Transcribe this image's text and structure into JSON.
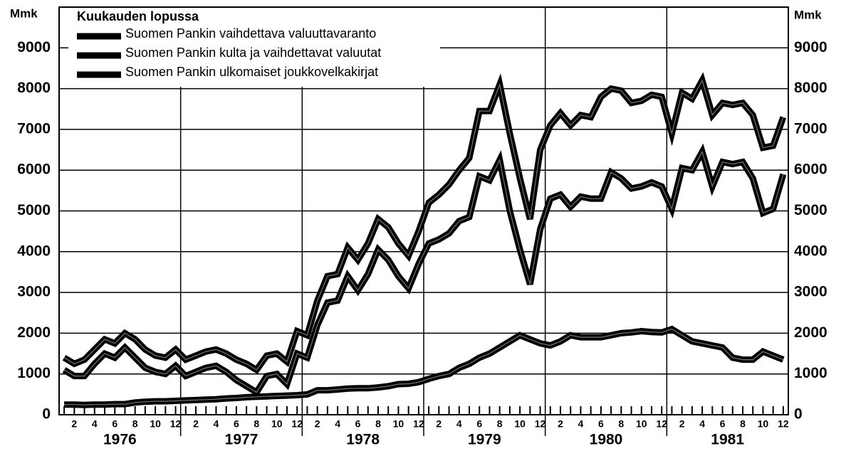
{
  "chart_data": {
    "type": "line",
    "y_unit": "Mmk",
    "legend_title": "Kuukauden lopussa",
    "categories": [
      null,
      "2",
      null,
      "4",
      null,
      "6",
      null,
      "8",
      null,
      "10",
      null,
      "12",
      null,
      "2",
      null,
      "4",
      null,
      "6",
      null,
      "8",
      null,
      "10",
      null,
      "12",
      null,
      "2",
      null,
      "4",
      null,
      "6",
      null,
      "8",
      null,
      "10",
      null,
      "12",
      null,
      "2",
      null,
      "4",
      null,
      "6",
      null,
      "8",
      null,
      "10",
      null,
      "12",
      null,
      "2",
      null,
      "4",
      null,
      "6",
      null,
      "8",
      null,
      "10",
      null,
      "12",
      null,
      "2",
      null,
      "4",
      null,
      "6",
      null,
      "8",
      null,
      "10",
      null,
      "12"
    ],
    "year_labels": [
      "1976",
      "1977",
      "1978",
      "1979",
      "1980",
      "1981"
    ],
    "series": [
      {
        "name": "Suomen Pankin vaihdettava valuuttavaranto",
        "color": "#000000",
        "values": [
          1100,
          950,
          950,
          1250,
          1500,
          1400,
          1650,
          1400,
          1150,
          1050,
          1000,
          1200,
          950,
          1050,
          1150,
          1200,
          1050,
          850,
          700,
          550,
          950,
          1000,
          750,
          1500,
          1400,
          2200,
          2750,
          2800,
          3400,
          3050,
          3450,
          4050,
          3800,
          3400,
          3100,
          3700,
          4200,
          4300,
          4450,
          4750,
          4850,
          5850,
          5750,
          6250,
          5000,
          4050,
          3200,
          4550,
          5300,
          5400,
          5100,
          5350,
          5300,
          5300,
          5950,
          5800,
          5550,
          5600,
          5700,
          5600,
          5050,
          6050,
          6000,
          6450,
          5600,
          6200,
          6150,
          6200,
          5800,
          4950,
          5050,
          5900
        ]
      },
      {
        "name": "Suomen Pankin kulta ja vaihdettavat valuutat",
        "color": "#000000",
        "values": [
          1400,
          1250,
          1350,
          1600,
          1850,
          1750,
          2000,
          1850,
          1600,
          1450,
          1400,
          1600,
          1350,
          1450,
          1550,
          1600,
          1500,
          1350,
          1250,
          1100,
          1450,
          1500,
          1300,
          2050,
          1950,
          2800,
          3400,
          3450,
          4100,
          3800,
          4200,
          4800,
          4600,
          4200,
          3900,
          4500,
          5200,
          5400,
          5650,
          6000,
          6300,
          7450,
          7450,
          8100,
          6900,
          5800,
          4800,
          6500,
          7100,
          7400,
          7100,
          7350,
          7300,
          7800,
          8000,
          7950,
          7650,
          7700,
          7850,
          7800,
          6900,
          7900,
          7750,
          8200,
          7350,
          7650,
          7600,
          7650,
          7350,
          6550,
          6600,
          7300
        ]
      },
      {
        "name": "Suomen Pankin ulkomaiset joukkovelkakirjat",
        "color": "#000000",
        "values": [
          250,
          250,
          240,
          250,
          250,
          260,
          260,
          300,
          320,
          330,
          330,
          340,
          350,
          360,
          370,
          380,
          400,
          410,
          430,
          440,
          450,
          460,
          470,
          480,
          500,
          600,
          600,
          620,
          640,
          650,
          650,
          670,
          700,
          750,
          760,
          800,
          880,
          950,
          1000,
          1150,
          1250,
          1400,
          1500,
          1650,
          1800,
          1950,
          1850,
          1750,
          1700,
          1800,
          1950,
          1900,
          1900,
          1900,
          1950,
          2000,
          2020,
          2050,
          2030,
          2020,
          2100,
          1950,
          1800,
          1750,
          1700,
          1650,
          1400,
          1350,
          1350,
          1550,
          1450,
          1350
        ]
      }
    ],
    "ylim": [
      0,
      10000
    ],
    "yticks": [
      0,
      1000,
      2000,
      3000,
      4000,
      5000,
      6000,
      7000,
      8000,
      9000
    ],
    "grid": true
  }
}
